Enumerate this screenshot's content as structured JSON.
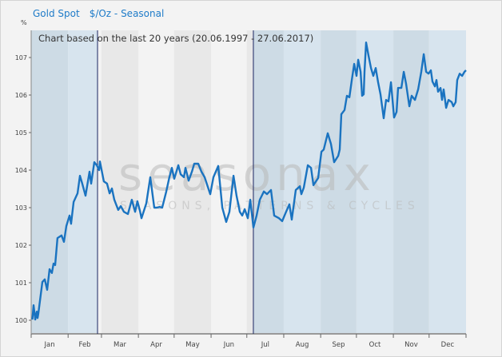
{
  "header": {
    "instrument": "Gold Spot",
    "title": "$/Oz - Seasonal",
    "unit_label": "%"
  },
  "chart_data": {
    "type": "line",
    "title": "Gold Spot $/Oz - Seasonal",
    "subtitle": "Chart based on the last 20 years (20.06.1997 - 27.06.2017)",
    "xlabel": "",
    "ylabel": "%",
    "x_unit": "day of year",
    "xlim": [
      0,
      365
    ],
    "ylim": [
      99.7,
      107.7
    ],
    "yticks": [
      100,
      101,
      102,
      103,
      104,
      105,
      106,
      107
    ],
    "months": [
      "Jan",
      "Feb",
      "Mar",
      "Apr",
      "May",
      "Jun",
      "Jul",
      "Aug",
      "Sep",
      "Oct",
      "Nov",
      "Dec"
    ],
    "selection": {
      "start_day": 55.7,
      "end_day": 186.5
    },
    "line_color": "#1a73c0",
    "watermark": {
      "brand": "seasonax",
      "tagline": "SEASONS, PATTERNS & CYCLES"
    },
    "series": [
      {
        "name": "Gold Spot $/Oz - Seasonal",
        "points": [
          [
            1,
            100.02
          ],
          [
            2,
            100.4
          ],
          [
            3.4,
            100.02
          ],
          [
            4.7,
            100.23
          ],
          [
            5.4,
            100.06
          ],
          [
            6,
            100.17
          ],
          [
            9.4,
            101.02
          ],
          [
            11.4,
            101.09
          ],
          [
            13.4,
            100.81
          ],
          [
            15.4,
            101.36
          ],
          [
            17.4,
            101.26
          ],
          [
            18.8,
            101.51
          ],
          [
            20.1,
            101.47
          ],
          [
            22.1,
            102.19
          ],
          [
            25.5,
            102.26
          ],
          [
            27.5,
            102.09
          ],
          [
            29.5,
            102.51
          ],
          [
            32.2,
            102.79
          ],
          [
            33.5,
            102.57
          ],
          [
            35.6,
            103.15
          ],
          [
            38.9,
            103.38
          ],
          [
            40.9,
            103.85
          ],
          [
            42.9,
            103.64
          ],
          [
            45.6,
            103.32
          ],
          [
            49,
            103.96
          ],
          [
            50.3,
            103.64
          ],
          [
            53,
            104.21
          ],
          [
            55,
            104.13
          ],
          [
            57,
            104.0
          ],
          [
            57.7,
            104.23
          ],
          [
            61,
            103.7
          ],
          [
            63.7,
            103.64
          ],
          [
            65.8,
            103.38
          ],
          [
            67.8,
            103.51
          ],
          [
            69.8,
            103.21
          ],
          [
            73.1,
            102.94
          ],
          [
            75.2,
            103.04
          ],
          [
            77.8,
            102.89
          ],
          [
            81.2,
            102.83
          ],
          [
            84.5,
            103.21
          ],
          [
            87.2,
            102.89
          ],
          [
            89.2,
            103.17
          ],
          [
            91.3,
            102.91
          ],
          [
            92.6,
            102.72
          ],
          [
            96.6,
            103.11
          ],
          [
            100,
            103.81
          ],
          [
            103.3,
            103.0
          ],
          [
            105.3,
            103.0
          ],
          [
            108,
            103.02
          ],
          [
            110,
            103.0
          ],
          [
            113.4,
            103.43
          ],
          [
            116,
            103.81
          ],
          [
            118.1,
            104.06
          ],
          [
            120.1,
            103.77
          ],
          [
            123.5,
            104.13
          ],
          [
            125.5,
            103.89
          ],
          [
            128.2,
            103.81
          ],
          [
            129.5,
            104.06
          ],
          [
            132.2,
            103.72
          ],
          [
            134.9,
            103.96
          ],
          [
            136.9,
            104.17
          ],
          [
            140.2,
            104.17
          ],
          [
            142.9,
            103.96
          ],
          [
            145.6,
            103.81
          ],
          [
            150.3,
            103.36
          ],
          [
            153,
            103.81
          ],
          [
            157,
            104.11
          ],
          [
            160.4,
            103.0
          ],
          [
            163.7,
            102.62
          ],
          [
            166.4,
            102.89
          ],
          [
            169.8,
            103.85
          ],
          [
            172.4,
            103.32
          ],
          [
            175.1,
            102.89
          ],
          [
            177.1,
            102.79
          ],
          [
            179.2,
            102.96
          ],
          [
            181.8,
            102.72
          ],
          [
            183.9,
            103.21
          ],
          [
            186.5,
            102.47
          ],
          [
            189.2,
            102.79
          ],
          [
            191.9,
            103.21
          ],
          [
            195.3,
            103.43
          ],
          [
            197.9,
            103.36
          ],
          [
            201.3,
            103.47
          ],
          [
            204,
            102.79
          ],
          [
            208,
            102.72
          ],
          [
            210.7,
            102.64
          ],
          [
            214,
            102.89
          ],
          [
            216.7,
            103.09
          ],
          [
            218.7,
            102.68
          ],
          [
            222.1,
            103.47
          ],
          [
            225.5,
            103.57
          ],
          [
            226.8,
            103.36
          ],
          [
            228.8,
            103.53
          ],
          [
            232.2,
            104.13
          ],
          [
            234.9,
            104.06
          ],
          [
            236.9,
            103.6
          ],
          [
            240.9,
            103.79
          ],
          [
            243.6,
            104.49
          ],
          [
            245.6,
            104.55
          ],
          [
            248.9,
            104.98
          ],
          [
            251.6,
            104.7
          ],
          [
            254.3,
            104.21
          ],
          [
            257.7,
            104.38
          ],
          [
            259,
            104.55
          ],
          [
            260.3,
            105.49
          ],
          [
            263,
            105.6
          ],
          [
            265,
            105.98
          ],
          [
            267.1,
            105.94
          ],
          [
            269.1,
            106.4
          ],
          [
            271.1,
            106.83
          ],
          [
            273.1,
            106.51
          ],
          [
            274.5,
            106.94
          ],
          [
            276.5,
            106.62
          ],
          [
            277.8,
            105.98
          ],
          [
            279.1,
            106.02
          ],
          [
            279.8,
            106.62
          ],
          [
            281.1,
            107.4
          ],
          [
            283.2,
            107.04
          ],
          [
            285.2,
            106.72
          ],
          [
            287.2,
            106.51
          ],
          [
            289.2,
            106.72
          ],
          [
            291.2,
            106.34
          ],
          [
            293.2,
            106.02
          ],
          [
            295.9,
            105.38
          ],
          [
            297.9,
            105.87
          ],
          [
            299.9,
            105.83
          ],
          [
            302,
            106.34
          ],
          [
            304.6,
            105.4
          ],
          [
            306.7,
            105.55
          ],
          [
            308,
            106.19
          ],
          [
            310.7,
            106.19
          ],
          [
            312.7,
            106.62
          ],
          [
            314.7,
            106.3
          ],
          [
            317.4,
            105.7
          ],
          [
            319.4,
            105.98
          ],
          [
            322.1,
            105.87
          ],
          [
            324.8,
            106.15
          ],
          [
            327.4,
            106.62
          ],
          [
            329.5,
            107.09
          ],
          [
            331.5,
            106.62
          ],
          [
            333.5,
            106.57
          ],
          [
            335.5,
            106.66
          ],
          [
            336.8,
            106.36
          ],
          [
            338.9,
            106.23
          ],
          [
            340.2,
            106.4
          ],
          [
            341.5,
            106.09
          ],
          [
            343.6,
            106.19
          ],
          [
            344.9,
            105.87
          ],
          [
            346.2,
            106.15
          ],
          [
            348.3,
            105.66
          ],
          [
            350.3,
            105.87
          ],
          [
            353,
            105.81
          ],
          [
            354.3,
            105.7
          ],
          [
            356.3,
            105.81
          ],
          [
            357.6,
            106.4
          ],
          [
            359.7,
            106.57
          ],
          [
            361.7,
            106.51
          ],
          [
            363.7,
            106.62
          ],
          [
            365,
            106.66
          ]
        ]
      }
    ]
  }
}
